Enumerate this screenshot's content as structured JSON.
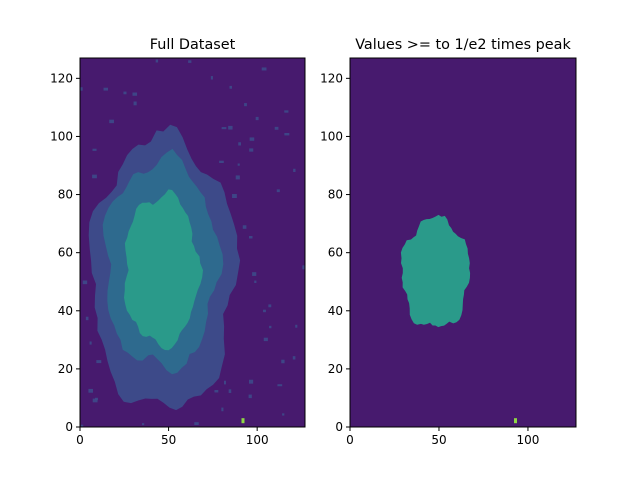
{
  "chart_data": [
    {
      "type": "heatmap",
      "title": "Full Dataset",
      "xlabel": "",
      "ylabel": "",
      "xlim": [
        0,
        127
      ],
      "ylim": [
        0,
        127
      ],
      "x_ticks": [
        "0",
        "50",
        "100"
      ],
      "y_ticks": [
        "0",
        "20",
        "40",
        "60",
        "80",
        "100",
        "120"
      ],
      "colormap": "viridis",
      "colors": {
        "background": "#471a6e",
        "level_1": "#3d4a89",
        "level_2": "#2e6a8e",
        "level_3": "#2a9a8a",
        "bright_spot": "#8fd744"
      },
      "regions": [
        {
          "level": "level_1",
          "cx": 47,
          "cy": 53,
          "rx": 41,
          "ry": 47
        },
        {
          "level": "level_2",
          "cx": 46,
          "cy": 56,
          "rx": 32,
          "ry": 36
        },
        {
          "level": "level_3",
          "cx": 46,
          "cy": 54,
          "rx": 21,
          "ry": 26
        }
      ],
      "bright_spots": [
        {
          "x": 92,
          "y": 2
        }
      ]
    },
    {
      "type": "heatmap",
      "title": "Values >= to 1/e2 times peak",
      "xlabel": "",
      "ylabel": "",
      "xlim": [
        0,
        127
      ],
      "ylim": [
        0,
        127
      ],
      "x_ticks": [
        "0",
        "50",
        "100"
      ],
      "y_ticks": [
        "0",
        "20",
        "40",
        "60",
        "80",
        "100",
        "120"
      ],
      "colormap": "viridis",
      "colors": {
        "background": "#471a6e",
        "level_3": "#2a9a8a",
        "bright_spot": "#8fd744"
      },
      "regions": [
        {
          "level": "level_3",
          "cx": 48,
          "cy": 53,
          "rx": 19,
          "ry": 19
        }
      ],
      "bright_spots": [
        {
          "x": 93,
          "y": 2
        }
      ]
    }
  ]
}
